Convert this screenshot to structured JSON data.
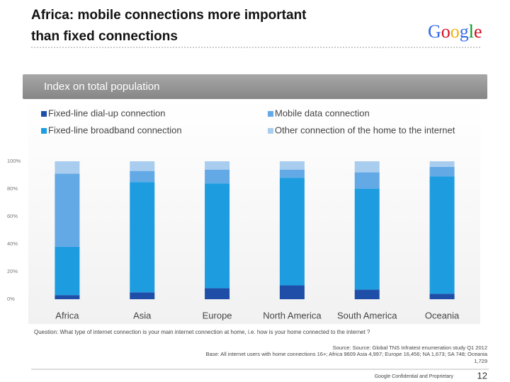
{
  "header": {
    "title_line_1": "Africa: mobile connections more important",
    "title_line_2": "than fixed connections",
    "logo": "Google"
  },
  "chart_data": {
    "type": "stacked-bar",
    "subtitle": "Index on total population",
    "categories": [
      "Africa",
      "Asia",
      "Europe",
      "North America",
      "South America",
      "Oceania"
    ],
    "series": [
      {
        "name": "Fixed-line dial-up connection",
        "color": "#1f4ea8",
        "values": [
          3,
          5,
          8,
          10,
          7,
          4
        ]
      },
      {
        "name": "Fixed-line broadband connection",
        "color": "#1d9de0",
        "values": [
          35,
          80,
          76,
          78,
          73,
          85
        ]
      },
      {
        "name": "Mobile data connection",
        "color": "#62a9e6",
        "values": [
          53,
          8,
          10,
          6,
          12,
          7
        ]
      },
      {
        "name": "Other connection of the home to the internet",
        "color": "#a9cdee",
        "values": [
          9,
          7,
          6,
          6,
          8,
          4
        ]
      }
    ],
    "ylim": [
      0,
      100
    ],
    "yticks": [
      {
        "value": 0,
        "label": "0%"
      },
      {
        "value": 20,
        "label": "20%"
      },
      {
        "value": 40,
        "label": "40%"
      },
      {
        "value": 60,
        "label": "60%"
      },
      {
        "value": 80,
        "label": "80%"
      },
      {
        "value": 100,
        "label": "100%"
      }
    ]
  },
  "footer": {
    "question": "Question: What type of internet connection is your main internet connection at home, i.e. how is your home connected to the internet ?",
    "source": "Source: Source: Global TNS Infratest enumeration study Q1 2012",
    "base_line_1": "Base: All internet users with home connections 16+; Africa 9609 Asia 4,997; Europe 16,456; NA 1,673; SA 748; Oceania",
    "base_line_2": "1,729",
    "confidential": "Google Confidential and Proprietary",
    "page_number": "12"
  }
}
